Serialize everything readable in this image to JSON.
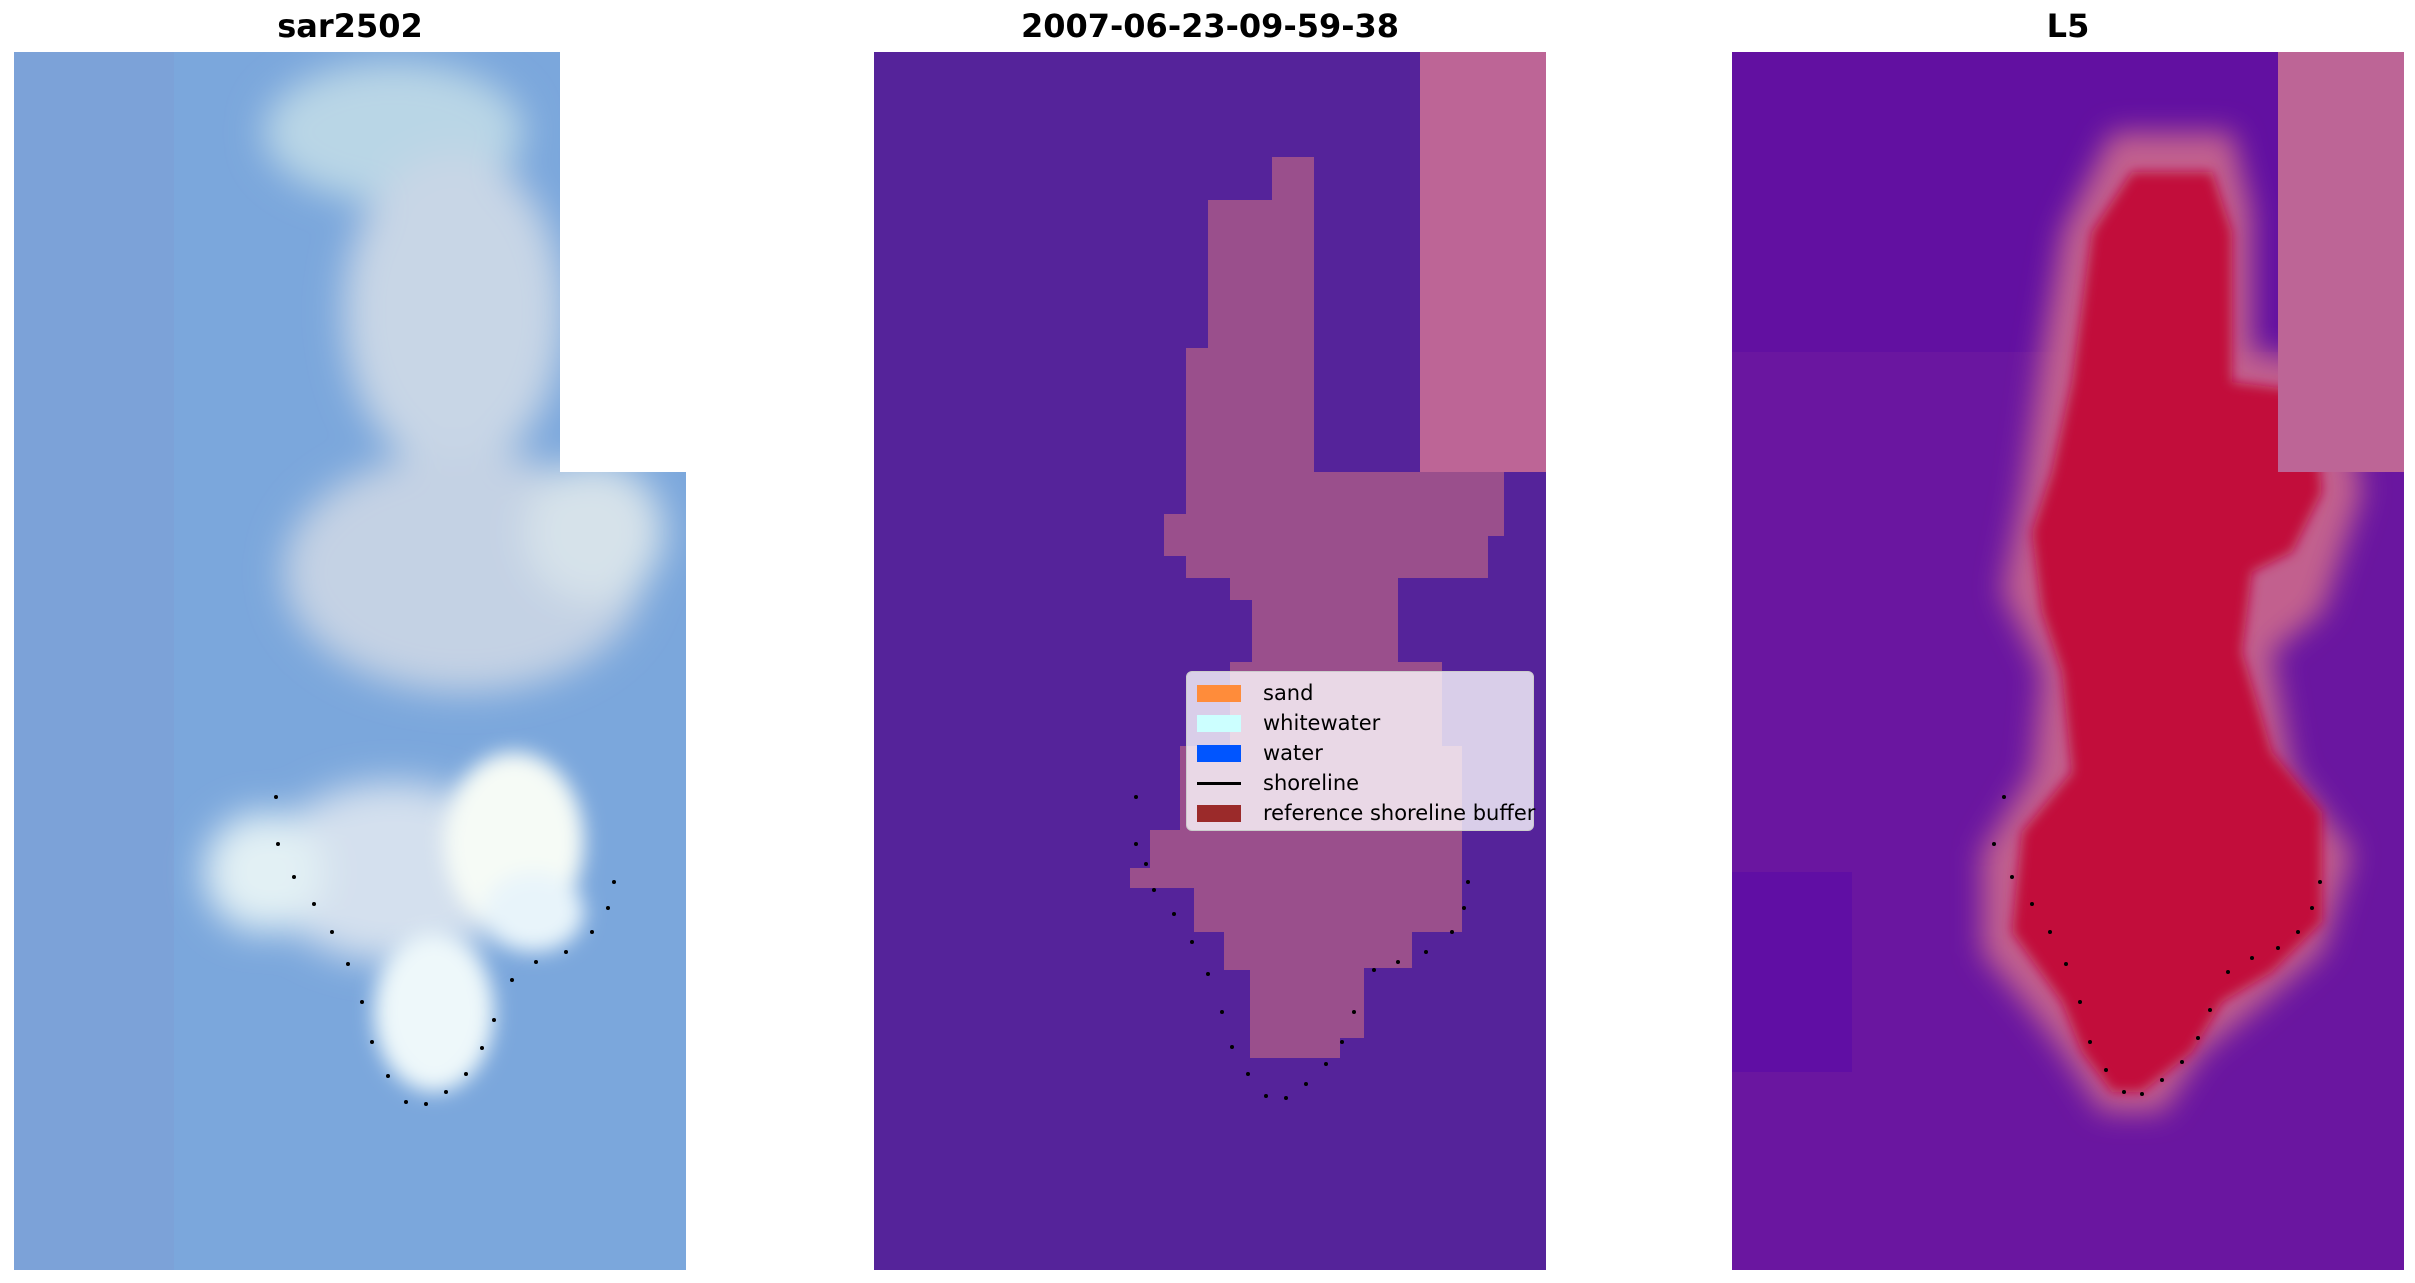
{
  "panels": [
    {
      "title": "sar2502"
    },
    {
      "title": "2007-06-23-09-59-38"
    },
    {
      "title": "L5"
    }
  ],
  "legend": {
    "items": [
      {
        "label": "sand",
        "color": "#ff8c3a",
        "kind": "patch"
      },
      {
        "label": "whitewater",
        "color": "#ccffff",
        "kind": "patch"
      },
      {
        "label": "water",
        "color": "#0055ff",
        "kind": "patch"
      },
      {
        "label": "shoreline",
        "color": "#000000",
        "kind": "line"
      },
      {
        "label": "reference shoreline buffer",
        "color": "#9b2a2a",
        "kind": "patch"
      }
    ]
  },
  "colors": {
    "water_blue": "#7aa6dc",
    "whitewater": "#eef8ff",
    "class_background": "#55239a",
    "class_sand_overlay": "#b65e96",
    "prob_background": "#6a12a0",
    "prob_sand": "#c8002e"
  }
}
